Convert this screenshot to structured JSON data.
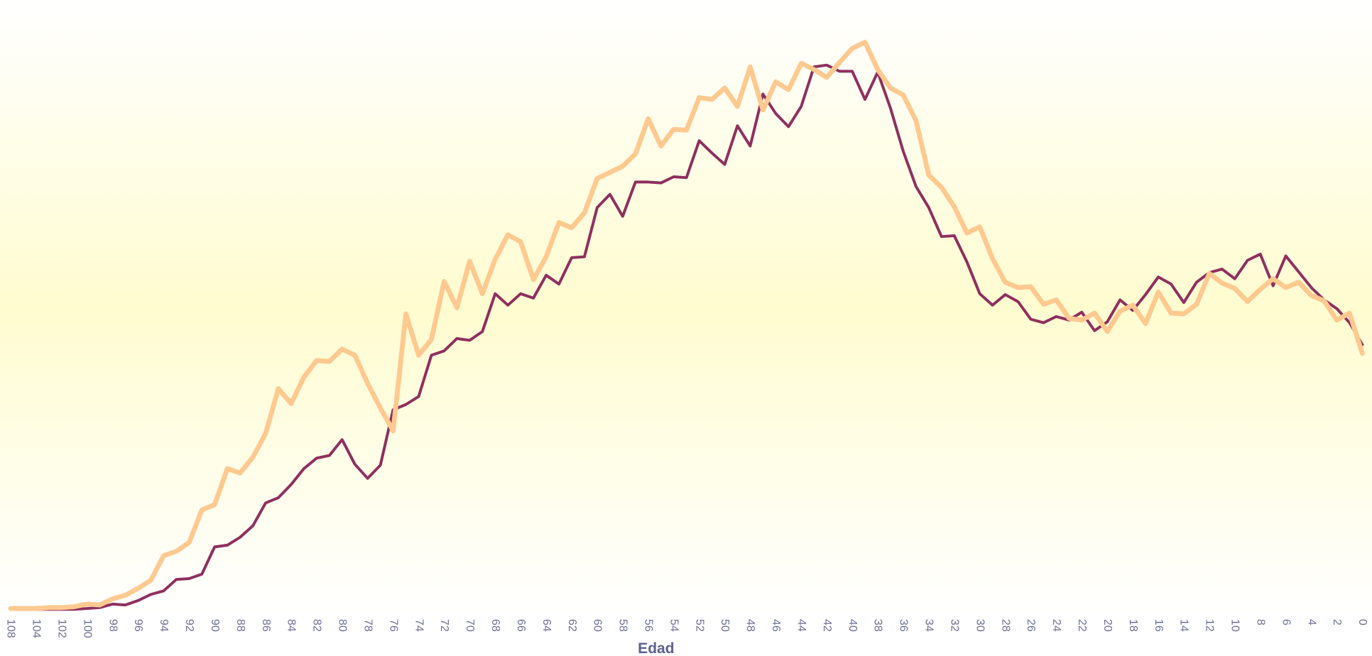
{
  "chart_data": {
    "type": "line",
    "x_label": "Edad",
    "categories": [
      108,
      null,
      104,
      null,
      102,
      null,
      100,
      null,
      98,
      null,
      96,
      null,
      94,
      null,
      92,
      null,
      90,
      null,
      88,
      null,
      86,
      null,
      84,
      null,
      82,
      null,
      80,
      null,
      78,
      null,
      76,
      null,
      74,
      null,
      72,
      null,
      70,
      null,
      68,
      null,
      66,
      null,
      64,
      null,
      62,
      null,
      60,
      null,
      58,
      null,
      56,
      null,
      54,
      null,
      52,
      null,
      50,
      null,
      48,
      null,
      46,
      null,
      44,
      null,
      42,
      null,
      40,
      null,
      38,
      null,
      36,
      null,
      34,
      null,
      32,
      null,
      30,
      null,
      28,
      null,
      26,
      null,
      24,
      null,
      22,
      null,
      20,
      null,
      18,
      null,
      16,
      null,
      14,
      null,
      12,
      null,
      10,
      null,
      8,
      null,
      6,
      null,
      4,
      null,
      2,
      null,
      0
    ],
    "series": [
      {
        "color": "#8f2f5f",
        "width": 3.2,
        "values": [
          0,
          0,
          0,
          0,
          0,
          0,
          1,
          2,
          6,
          5,
          10,
          17,
          21,
          34,
          35,
          40,
          71,
          73,
          82,
          95,
          121,
          127,
          142,
          160,
          172,
          175,
          193,
          165,
          149,
          164,
          227,
          233,
          242,
          289,
          294,
          308,
          306,
          316,
          359,
          346,
          359,
          354,
          380,
          370,
          400,
          401,
          457,
          472,
          447,
          486,
          486,
          485,
          492,
          491,
          533,
          519,
          506,
          550,
          527,
          586,
          564,
          549,
          572,
          617,
          619,
          612,
          612,
          580,
          611,
          570,
          521,
          481,
          457,
          424,
          425,
          395,
          359,
          346,
          358,
          350,
          330,
          326,
          333,
          329,
          338,
          317,
          327,
          352,
          340,
          358,
          378,
          370,
          349,
          372,
          383,
          387,
          376,
          397,
          404,
          368,
          402,
          384,
          366,
          352,
          342,
          326,
          301
        ]
      },
      {
        "color": "#ffc98f",
        "width": 5.5,
        "values": [
          1,
          1,
          1,
          2,
          2,
          3,
          6,
          5,
          12,
          16,
          24,
          33,
          61,
          66,
          76,
          113,
          119,
          160,
          155,
          173,
          200,
          251,
          234,
          264,
          283,
          282,
          296,
          289,
          257,
          229,
          203,
          336,
          289,
          307,
          373,
          343,
          396,
          359,
          398,
          426,
          418,
          375,
          401,
          440,
          434,
          451,
          490,
          497,
          504,
          518,
          558,
          527,
          546,
          545,
          582,
          580,
          593,
          572,
          617,
          568,
          600,
          591,
          621,
          614,
          605,
          622,
          638,
          645,
          614,
          593,
          585,
          556,
          494,
          480,
          458,
          428,
          435,
          399,
          372,
          366,
          367,
          347,
          352,
          331,
          329,
          337,
          316,
          339,
          346,
          325,
          361,
          337,
          336,
          347,
          382,
          371,
          365,
          350,
          364,
          376,
          366,
          372,
          357,
          351,
          329,
          337,
          291
        ]
      }
    ],
    "ylim": [
      0,
      700
    ],
    "background": [
      "#ffffff",
      "#fffcd0",
      "#ffffff"
    ]
  }
}
